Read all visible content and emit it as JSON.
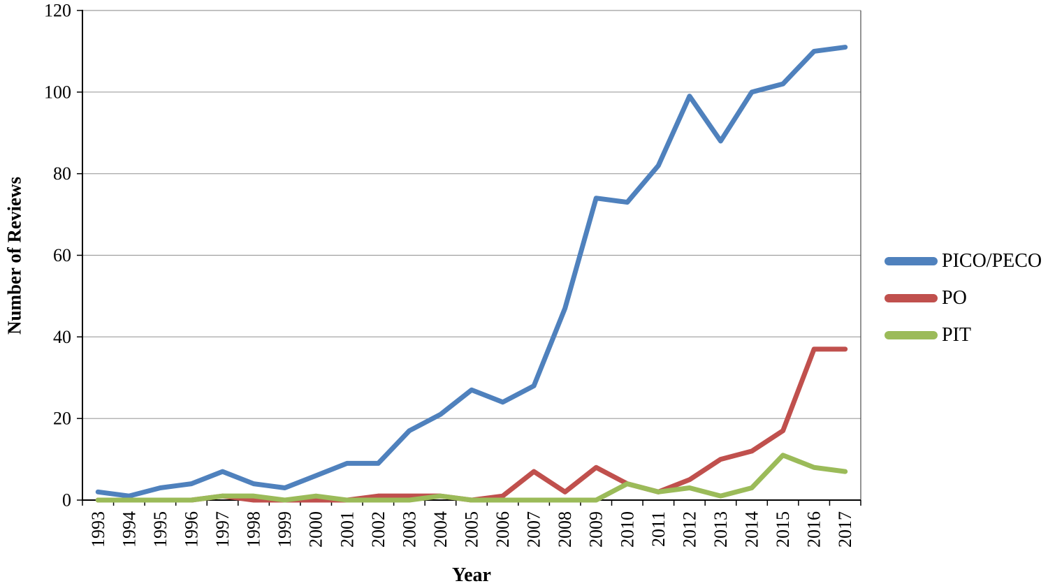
{
  "chart_data": {
    "type": "line",
    "title": "",
    "xlabel": "Year",
    "ylabel": "Number of Reviews",
    "x": [
      "1993",
      "1994",
      "1995",
      "1996",
      "1997",
      "1998",
      "1999",
      "2000",
      "2001",
      "2002",
      "2003",
      "2004",
      "2005",
      "2006",
      "2007",
      "2008",
      "2009",
      "2010",
      "2011",
      "2012",
      "2013",
      "2014",
      "2015",
      "2016",
      "2017"
    ],
    "ylim": [
      0,
      120
    ],
    "yticks": [
      0,
      20,
      40,
      60,
      80,
      100,
      120
    ],
    "grid": true,
    "legend_position": "right",
    "series": [
      {
        "name": "PICO/PECO",
        "color": "#4F81BD",
        "values": [
          2,
          1,
          3,
          4,
          7,
          4,
          3,
          6,
          9,
          9,
          17,
          21,
          27,
          24,
          28,
          47,
          74,
          73,
          82,
          99,
          88,
          100,
          102,
          110,
          111
        ]
      },
      {
        "name": "PO",
        "color": "#C0504D",
        "values": [
          0,
          0,
          0,
          0,
          1,
          0,
          0,
          0,
          0,
          1,
          1,
          1,
          0,
          1,
          7,
          2,
          8,
          4,
          2,
          5,
          10,
          12,
          17,
          37,
          37
        ]
      },
      {
        "name": "PIT",
        "color": "#9BBB59",
        "values": [
          0,
          0,
          0,
          0,
          1,
          1,
          0,
          1,
          0,
          0,
          0,
          1,
          0,
          0,
          0,
          0,
          0,
          4,
          2,
          3,
          1,
          3,
          11,
          8,
          7
        ]
      }
    ],
    "colors": {
      "axis": "#000000",
      "gridline": "#9e9e9e"
    }
  }
}
